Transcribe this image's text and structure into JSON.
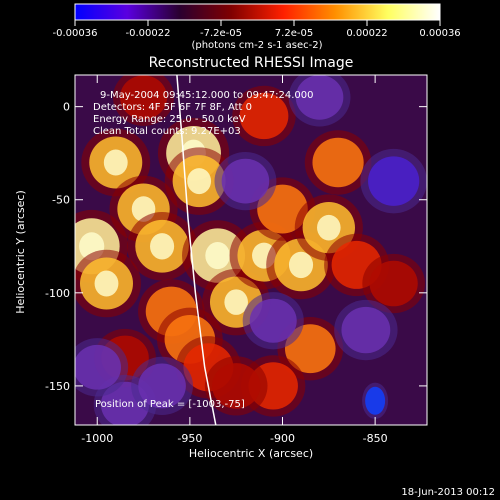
{
  "colorbar": {
    "tick_labels": [
      "-0.00036",
      "-0.00022",
      "-7.2e-05",
      "7.2e-05",
      "0.00022",
      "0.00036"
    ],
    "unit_label": "(photons cm-2 s-1 asec-2)",
    "range": [
      -0.00036,
      0.00036
    ],
    "colormap": [
      "#0000ff",
      "#5a00e0",
      "#2a0030",
      "#800000",
      "#ff2000",
      "#ff9000",
      "#ffff60",
      "#ffffff"
    ]
  },
  "chart_data": {
    "type": "heatmap",
    "title": "Reconstructed RHESSI Image",
    "xlabel": "Heliocentric X (arcsec)",
    "ylabel": "Heliocentric Y (arcsec)",
    "xlim": [
      -1012,
      -822
    ],
    "ylim": [
      -171,
      17
    ],
    "x_ticks": [
      -1000,
      -950,
      -900,
      -850
    ],
    "x_tick_labels": [
      "-1000",
      "-950",
      "-900",
      "-850"
    ],
    "y_ticks": [
      0,
      -50,
      -100,
      -150
    ],
    "y_tick_labels": [
      "0",
      "-50",
      "-100",
      "-150"
    ],
    "annotations": [
      "9-May-2004 09:45:12.000 to 09:47:24.000",
      "Detectors: 4F 5F 6F 7F 8F, Att 0",
      "Energy Range: 25.0 - 50.0 keV",
      "Clean     Total counts: 9.27E+03"
    ],
    "peak_label": "Position of Peak = [-1003,-75]",
    "peak_position": [
      -1003,
      -75
    ],
    "limb_curve": [
      [
        -957,
        17
      ],
      [
        -954,
        -20
      ],
      [
        -951,
        -60
      ],
      [
        -947,
        -100
      ],
      [
        -942,
        -140
      ],
      [
        -936,
        -171
      ]
    ],
    "blobs": [
      {
        "x": -1003,
        "y": -75,
        "v": 1.0
      },
      {
        "x": -995,
        "y": -95,
        "v": 0.75
      },
      {
        "x": -990,
        "y": -30,
        "v": 0.75
      },
      {
        "x": -975,
        "y": -55,
        "v": 0.7
      },
      {
        "x": -965,
        "y": -75,
        "v": 0.8
      },
      {
        "x": -960,
        "y": -110,
        "v": 0.6
      },
      {
        "x": -950,
        "y": -125,
        "v": 0.55
      },
      {
        "x": -940,
        "y": -140,
        "v": 0.5
      },
      {
        "x": -948,
        "y": -25,
        "v": 0.9
      },
      {
        "x": -945,
        "y": -40,
        "v": 0.75
      },
      {
        "x": -935,
        "y": -80,
        "v": 0.9
      },
      {
        "x": -925,
        "y": -105,
        "v": 0.7
      },
      {
        "x": -910,
        "y": -80,
        "v": 0.75
      },
      {
        "x": -900,
        "y": -55,
        "v": 0.55
      },
      {
        "x": -890,
        "y": -85,
        "v": 0.8
      },
      {
        "x": -875,
        "y": -65,
        "v": 0.7
      },
      {
        "x": -870,
        "y": -30,
        "v": 0.6
      },
      {
        "x": -860,
        "y": -85,
        "v": 0.5
      },
      {
        "x": -885,
        "y": -130,
        "v": 0.55
      },
      {
        "x": -905,
        "y": -150,
        "v": 0.45
      },
      {
        "x": -925,
        "y": -150,
        "v": 0.35
      },
      {
        "x": -840,
        "y": -95,
        "v": 0.35
      },
      {
        "x": -910,
        "y": -5,
        "v": 0.4
      },
      {
        "x": -985,
        "y": -135,
        "v": 0.3
      },
      {
        "x": -975,
        "y": 5,
        "v": 0.25
      },
      {
        "x": -985,
        "y": -160,
        "v": -0.35
      },
      {
        "x": -1000,
        "y": -140,
        "v": -0.3
      },
      {
        "x": -850,
        "y": -158,
        "v": -0.85
      },
      {
        "x": -840,
        "y": -40,
        "v": -0.6
      },
      {
        "x": -855,
        "y": -120,
        "v": -0.4
      },
      {
        "x": -920,
        "y": -40,
        "v": -0.3
      },
      {
        "x": -880,
        "y": 5,
        "v": -0.3
      },
      {
        "x": -965,
        "y": -150,
        "v": -0.3
      },
      {
        "x": -905,
        "y": -115,
        "v": -0.25
      }
    ]
  },
  "footer": {
    "date": "18-Jun-2013 00:12"
  }
}
